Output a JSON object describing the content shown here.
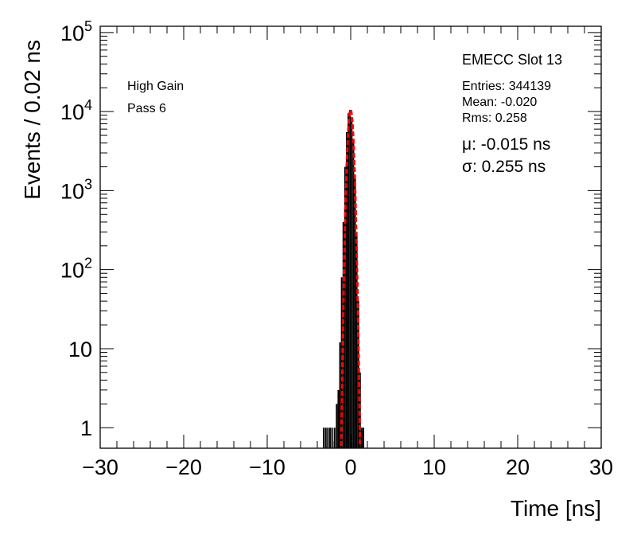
{
  "chart_data": {
    "type": "histogram",
    "title": "",
    "xlabel": "Time [ns]",
    "ylabel": "Events / 0.02 ns",
    "xlim": [
      -30,
      30
    ],
    "ylim": [
      0.55,
      120000
    ],
    "yscale": "log",
    "x_ticks": [
      {
        "value": -30,
        "label": "−30"
      },
      {
        "value": -20,
        "label": "−20"
      },
      {
        "value": -10,
        "label": "−10"
      },
      {
        "value": 0,
        "label": "0"
      },
      {
        "value": 10,
        "label": "10"
      },
      {
        "value": 20,
        "label": "20"
      },
      {
        "value": 30,
        "label": "30"
      }
    ],
    "y_ticks": [
      {
        "value": 1,
        "base": "1",
        "exp": ""
      },
      {
        "value": 10,
        "base": "10",
        "exp": ""
      },
      {
        "value": 100,
        "base": "10",
        "exp": "2"
      },
      {
        "value": 1000,
        "base": "10",
        "exp": "3"
      },
      {
        "value": 10000,
        "base": "10",
        "exp": "4"
      },
      {
        "value": 100000,
        "base": "10",
        "exp": "5"
      }
    ],
    "annotations": {
      "left": [
        "High Gain",
        "Pass 6"
      ],
      "slot": "EMECC Slot 13",
      "stats": [
        "Entries: 344139",
        "Mean: -0.020",
        "Rms: 0.258"
      ],
      "fit": [
        "μ: -0.015 ns",
        "σ: 0.255 ns"
      ]
    },
    "histogram": {
      "color": "#000000",
      "entries": 344139,
      "mean": -0.02,
      "rms": 0.258,
      "x": [
        -3.2,
        -2.95,
        -2.7,
        -2.45,
        -2.2,
        -1.9,
        -1.65,
        -1.45,
        -1.25,
        -1.05,
        -0.85,
        -0.65,
        -0.45,
        -0.25,
        -0.05,
        0.15,
        0.35,
        0.55,
        0.75,
        0.95,
        1.15,
        1.35,
        1.55
      ],
      "values": [
        1,
        1,
        1,
        1,
        1,
        1,
        2,
        3,
        12,
        80,
        400,
        2000,
        5500,
        9500,
        10500,
        8500,
        4500,
        1500,
        300,
        40,
        5,
        1,
        1
      ]
    },
    "fit": {
      "type": "gaussian",
      "color": "#ff0000",
      "mu": -0.015,
      "sigma": 0.255,
      "amplitude": 10500
    }
  }
}
